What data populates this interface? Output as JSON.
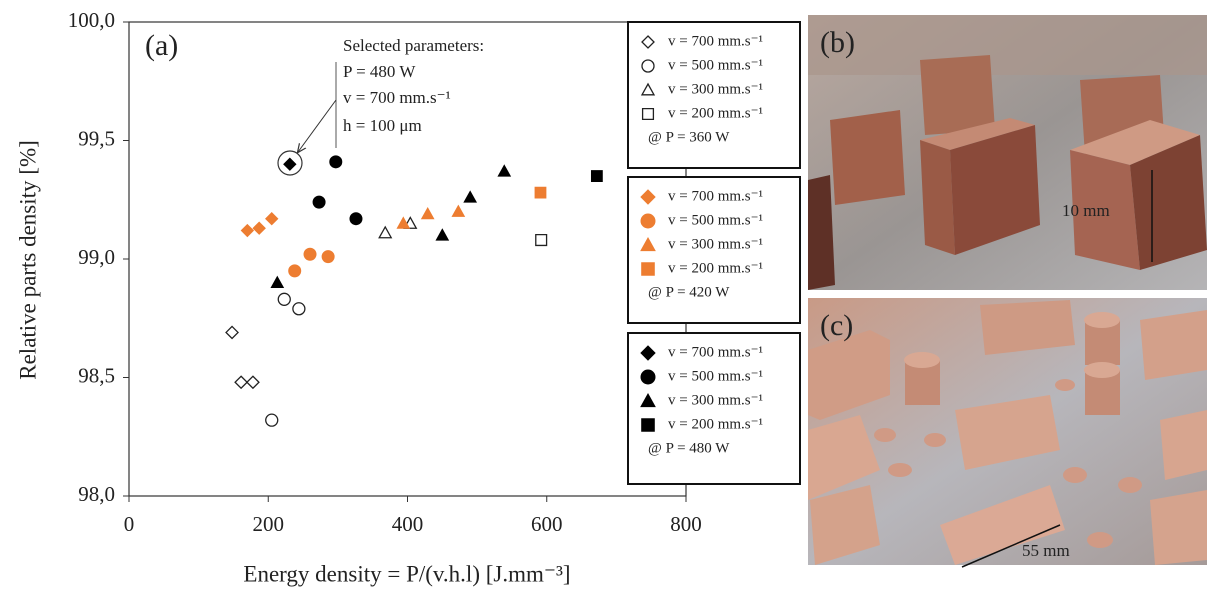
{
  "chart_data": {
    "type": "scatter",
    "panel_label": "(a)",
    "x_label": "Energy density = P/(v.h.l) [J.mm⁻³]",
    "y_label": "Relative parts density [%]",
    "annotations": [
      "Selected parameters:",
      "P = 480 W",
      "v = 700 mm.s⁻¹",
      "h = 100 μm"
    ],
    "xlim": [
      0,
      800
    ],
    "xticks": [
      0,
      200,
      400,
      600,
      800
    ],
    "ylim": [
      98,
      100
    ],
    "yticks": [
      {
        "value": 98,
        "label": "98,0"
      },
      {
        "value": 98.5,
        "label": "98,5"
      },
      {
        "value": 99,
        "label": "99,0"
      },
      {
        "value": 99.5,
        "label": "99,5"
      },
      {
        "value": 100,
        "label": "100,0"
      }
    ],
    "grid": false,
    "legend_groups": [
      "@ P = 360 W",
      "@ P = 420 W",
      "@ P = 480 W"
    ],
    "series": [
      {
        "name": "v = 700 mm.s⁻¹",
        "group": 0,
        "marker": "diamond",
        "filled": false,
        "color": "#222222",
        "x": [
          148,
          161,
          178
        ],
        "values": [
          98.69,
          98.48,
          98.48
        ]
      },
      {
        "name": "v = 500 mm.s⁻¹",
        "group": 0,
        "marker": "circle",
        "filled": false,
        "color": "#222222",
        "x": [
          223,
          244,
          205
        ],
        "values": [
          98.83,
          98.79,
          98.32
        ]
      },
      {
        "name": "v = 300 mm.s⁻¹",
        "group": 0,
        "marker": "triangle",
        "filled": false,
        "color": "#222222",
        "x": [
          368,
          404
        ],
        "values": [
          99.11,
          99.15
        ]
      },
      {
        "name": "v = 200 mm.s⁻¹",
        "group": 0,
        "marker": "square",
        "filled": false,
        "color": "#222222",
        "x": [
          592
        ],
        "values": [
          99.08
        ]
      },
      {
        "name": "v = 700 mm.s⁻¹",
        "group": 1,
        "marker": "diamond",
        "filled": true,
        "color": "#ed7d31",
        "x": [
          170,
          187,
          205
        ],
        "values": [
          99.12,
          99.13,
          99.17
        ]
      },
      {
        "name": "v = 500 mm.s⁻¹",
        "group": 1,
        "marker": "circle",
        "filled": true,
        "color": "#ed7d31",
        "x": [
          238,
          260,
          286
        ],
        "values": [
          98.95,
          99.02,
          99.01
        ]
      },
      {
        "name": "v = 300 mm.s⁻¹",
        "group": 1,
        "marker": "triangle",
        "filled": true,
        "color": "#ed7d31",
        "x": [
          394,
          429,
          473
        ],
        "values": [
          99.15,
          99.19,
          99.2
        ]
      },
      {
        "name": "v = 200 mm.s⁻¹",
        "group": 1,
        "marker": "square",
        "filled": true,
        "color": "#ed7d31",
        "x": [
          591
        ],
        "values": [
          99.28
        ]
      },
      {
        "name": "v = 700 mm.s⁻¹",
        "group": 2,
        "marker": "diamond",
        "filled": true,
        "color": "#000000",
        "x": [
          231
        ],
        "values": [
          99.4
        ]
      },
      {
        "name": "v = 500 mm.s⁻¹",
        "group": 2,
        "marker": "circle",
        "filled": true,
        "color": "#000000",
        "x": [
          273,
          297,
          326
        ],
        "values": [
          99.24,
          99.41,
          99.17
        ]
      },
      {
        "name": "v = 300 mm.s⁻¹",
        "group": 2,
        "marker": "triangle",
        "filled": true,
        "color": "#000000",
        "x": [
          213,
          450,
          490,
          539
        ],
        "values": [
          98.9,
          99.1,
          99.26,
          99.37
        ]
      },
      {
        "name": "v = 200 mm.s⁻¹",
        "group": 2,
        "marker": "square",
        "filled": true,
        "color": "#000000",
        "x": [
          672
        ],
        "values": [
          99.35
        ]
      }
    ]
  },
  "panels": [
    {
      "label": "(b)",
      "annotation": "10 mm"
    },
    {
      "label": "(c)",
      "annotation": "55 mm"
    }
  ]
}
